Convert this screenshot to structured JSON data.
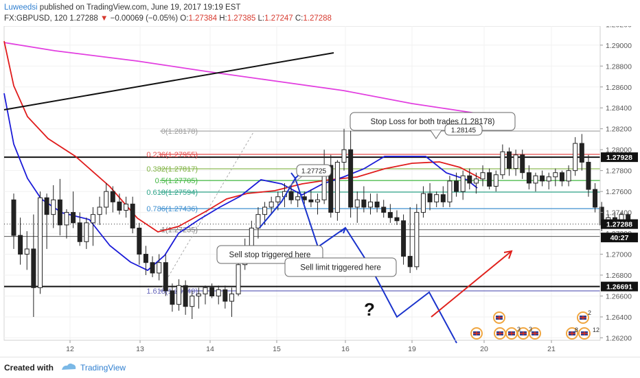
{
  "header": {
    "author": "Luweedsi",
    "published": "published on TradingView.com, June 19, 2017 19:19 EST",
    "symbol": "FX:GBPUSD, 120",
    "last": "1.27288",
    "change_arrow": "▼",
    "change": "−0.00069 (−0.05%)",
    "o_label": "O:",
    "o_value": "1.27384",
    "h_label": "H:",
    "h_value": "1.27385",
    "l_label": "L:",
    "l_value": "1.27247",
    "c_label": "C:",
    "c_value": "1.27288"
  },
  "footer": {
    "created_with": "Created with",
    "brand": "TradingView"
  },
  "colors": {
    "up": "#ffffff",
    "down": "#222222",
    "ema_fast": "#1a1ad8",
    "ema_mid": "#e01b1b",
    "ema_slow": "#e23ee0",
    "projection": "#1a33cc",
    "arrow_red": "#e0201b",
    "price_badge": "#111111",
    "link_blue": "#2f7fd0"
  },
  "chart_data": {
    "type": "candlestick",
    "y_axis_ticks": [
      "1.29200",
      "1.29000",
      "1.28800",
      "1.28600",
      "1.28400",
      "1.28200",
      "1.28000",
      "1.27800",
      "1.27600",
      "1.27400",
      "1.27200",
      "1.27000",
      "1.26800",
      "1.26600",
      "1.26400",
      "1.26200"
    ],
    "ylim": [
      1.2617,
      1.2934
    ],
    "x_axis_ticks": [
      "12",
      "13",
      "14",
      "15",
      "16",
      "19",
      "20",
      "21"
    ],
    "price_badges": [
      {
        "label": "1.27928",
        "value": 1.27928
      },
      {
        "label": "1.27288",
        "value": 1.27288
      },
      {
        "label": "40:27",
        "value": 1.2716
      },
      {
        "label": "1.26691",
        "value": 1.26691
      }
    ],
    "fibonacci": [
      {
        "label": "0(1.28178)",
        "value": 1.28178,
        "color": "#9e9e9e"
      },
      {
        "label": "0.236(1.27955)",
        "value": 1.27955,
        "color": "#e84d4d"
      },
      {
        "label": "0.382(1.27817)",
        "value": 1.27817,
        "color": "#7fb241"
      },
      {
        "label": "0.5(1.27705)",
        "value": 1.27705,
        "color": "#3fb53f"
      },
      {
        "label": "0.618(1.27594)",
        "value": 1.27594,
        "color": "#2fa58a"
      },
      {
        "label": "0.786(1.27436)",
        "value": 1.27436,
        "color": "#3e8fcf"
      },
      {
        "label": "1(1.27235)",
        "value": 1.27235,
        "color": "#7d7d7d"
      },
      {
        "label": "1.618(1.26649)",
        "value": 1.26649,
        "color": "#6666bb"
      }
    ],
    "annotations": [
      {
        "text": "Stop Loss for both trades (1.28178)"
      },
      {
        "text": "1.28145"
      },
      {
        "text": "1.27725"
      },
      {
        "text": "Sell stop triggered here"
      },
      {
        "text": "Sell limit triggered here"
      },
      {
        "text": "?"
      }
    ],
    "events": [
      "2",
      "3",
      "3",
      "8",
      "12"
    ],
    "candles": [
      {
        "o": 1.2752,
        "h": 1.2758,
        "l": 1.2705,
        "c": 1.2718
      },
      {
        "o": 1.2718,
        "h": 1.2735,
        "l": 1.269,
        "c": 1.27
      },
      {
        "o": 1.27,
        "h": 1.2722,
        "l": 1.2685,
        "c": 1.2705
      },
      {
        "o": 1.2705,
        "h": 1.2738,
        "l": 1.264,
        "c": 1.2668
      },
      {
        "o": 1.2668,
        "h": 1.276,
        "l": 1.2662,
        "c": 1.2754
      },
      {
        "o": 1.2754,
        "h": 1.2758,
        "l": 1.2705,
        "c": 1.2738
      },
      {
        "o": 1.2738,
        "h": 1.2766,
        "l": 1.2725,
        "c": 1.2752
      },
      {
        "o": 1.2752,
        "h": 1.2772,
        "l": 1.2718,
        "c": 1.2728
      },
      {
        "o": 1.2728,
        "h": 1.2743,
        "l": 1.2715,
        "c": 1.274
      },
      {
        "o": 1.274,
        "h": 1.276,
        "l": 1.2725,
        "c": 1.273
      },
      {
        "o": 1.273,
        "h": 1.274,
        "l": 1.2708,
        "c": 1.2712
      },
      {
        "o": 1.2712,
        "h": 1.2735,
        "l": 1.2705,
        "c": 1.273
      },
      {
        "o": 1.273,
        "h": 1.2745,
        "l": 1.2708,
        "c": 1.2738
      },
      {
        "o": 1.2738,
        "h": 1.2755,
        "l": 1.2728,
        "c": 1.2745
      },
      {
        "o": 1.2745,
        "h": 1.2768,
        "l": 1.2738,
        "c": 1.276
      },
      {
        "o": 1.276,
        "h": 1.2765,
        "l": 1.274,
        "c": 1.275
      },
      {
        "o": 1.275,
        "h": 1.2758,
        "l": 1.2738,
        "c": 1.2742
      },
      {
        "o": 1.2742,
        "h": 1.2755,
        "l": 1.2735,
        "c": 1.2748
      },
      {
        "o": 1.2748,
        "h": 1.2755,
        "l": 1.272,
        "c": 1.2725
      },
      {
        "o": 1.2725,
        "h": 1.273,
        "l": 1.269,
        "c": 1.27
      },
      {
        "o": 1.27,
        "h": 1.2708,
        "l": 1.268,
        "c": 1.2692
      },
      {
        "o": 1.2692,
        "h": 1.2698,
        "l": 1.2678,
        "c": 1.2682
      },
      {
        "o": 1.2682,
        "h": 1.27,
        "l": 1.2675,
        "c": 1.2692
      },
      {
        "o": 1.2692,
        "h": 1.27,
        "l": 1.266,
        "c": 1.2665
      },
      {
        "o": 1.2665,
        "h": 1.2672,
        "l": 1.2645,
        "c": 1.2652
      },
      {
        "o": 1.2652,
        "h": 1.2676,
        "l": 1.2646,
        "c": 1.267
      },
      {
        "o": 1.267,
        "h": 1.2675,
        "l": 1.2642,
        "c": 1.265
      },
      {
        "o": 1.265,
        "h": 1.2665,
        "l": 1.2638,
        "c": 1.266
      },
      {
        "o": 1.266,
        "h": 1.2668,
        "l": 1.2648,
        "c": 1.2662
      },
      {
        "o": 1.2662,
        "h": 1.267,
        "l": 1.2652,
        "c": 1.2668
      },
      {
        "o": 1.2668,
        "h": 1.2672,
        "l": 1.2658,
        "c": 1.266
      },
      {
        "o": 1.266,
        "h": 1.267,
        "l": 1.2652,
        "c": 1.2666
      },
      {
        "o": 1.2666,
        "h": 1.267,
        "l": 1.2648,
        "c": 1.2655
      },
      {
        "o": 1.2655,
        "h": 1.2668,
        "l": 1.264,
        "c": 1.2662
      },
      {
        "o": 1.2662,
        "h": 1.2695,
        "l": 1.266,
        "c": 1.269
      },
      {
        "o": 1.269,
        "h": 1.2715,
        "l": 1.2685,
        "c": 1.2708
      },
      {
        "o": 1.2708,
        "h": 1.2732,
        "l": 1.27,
        "c": 1.2725
      },
      {
        "o": 1.2725,
        "h": 1.2745,
        "l": 1.2715,
        "c": 1.2738
      },
      {
        "o": 1.2738,
        "h": 1.275,
        "l": 1.2728,
        "c": 1.2745
      },
      {
        "o": 1.2745,
        "h": 1.2755,
        "l": 1.2738,
        "c": 1.275
      },
      {
        "o": 1.275,
        "h": 1.276,
        "l": 1.2742,
        "c": 1.2755
      },
      {
        "o": 1.2755,
        "h": 1.2768,
        "l": 1.2745,
        "c": 1.276
      },
      {
        "o": 1.276,
        "h": 1.2765,
        "l": 1.2748,
        "c": 1.2752
      },
      {
        "o": 1.2752,
        "h": 1.276,
        "l": 1.2745,
        "c": 1.2755
      },
      {
        "o": 1.2755,
        "h": 1.276,
        "l": 1.2748,
        "c": 1.2752
      },
      {
        "o": 1.2752,
        "h": 1.2762,
        "l": 1.2745,
        "c": 1.275
      },
      {
        "o": 1.275,
        "h": 1.2758,
        "l": 1.2738,
        "c": 1.2752
      },
      {
        "o": 1.2752,
        "h": 1.28,
        "l": 1.2748,
        "c": 1.2785
      },
      {
        "o": 1.2785,
        "h": 1.2795,
        "l": 1.2735,
        "c": 1.274
      },
      {
        "o": 1.274,
        "h": 1.279,
        "l": 1.2732,
        "c": 1.2788
      },
      {
        "o": 1.2788,
        "h": 1.282,
        "l": 1.278,
        "c": 1.28
      },
      {
        "o": 1.28,
        "h": 1.2818,
        "l": 1.2735,
        "c": 1.2745
      },
      {
        "o": 1.2745,
        "h": 1.276,
        "l": 1.273,
        "c": 1.2752
      },
      {
        "o": 1.2752,
        "h": 1.2765,
        "l": 1.274,
        "c": 1.2745
      },
      {
        "o": 1.2745,
        "h": 1.2758,
        "l": 1.2738,
        "c": 1.275
      },
      {
        "o": 1.275,
        "h": 1.2758,
        "l": 1.274,
        "c": 1.2745
      },
      {
        "o": 1.2745,
        "h": 1.2752,
        "l": 1.2735,
        "c": 1.274
      },
      {
        "o": 1.274,
        "h": 1.2748,
        "l": 1.273,
        "c": 1.2735
      },
      {
        "o": 1.2735,
        "h": 1.2742,
        "l": 1.2728,
        "c": 1.2732
      },
      {
        "o": 1.2732,
        "h": 1.2738,
        "l": 1.269,
        "c": 1.2698
      },
      {
        "o": 1.2698,
        "h": 1.2745,
        "l": 1.2682,
        "c": 1.2688
      },
      {
        "o": 1.2688,
        "h": 1.2748,
        "l": 1.2685,
        "c": 1.274
      },
      {
        "o": 1.274,
        "h": 1.2765,
        "l": 1.2735,
        "c": 1.2758
      },
      {
        "o": 1.2758,
        "h": 1.2768,
        "l": 1.2742,
        "c": 1.275
      },
      {
        "o": 1.275,
        "h": 1.276,
        "l": 1.2745,
        "c": 1.2757
      },
      {
        "o": 1.2757,
        "h": 1.2765,
        "l": 1.2745,
        "c": 1.275
      },
      {
        "o": 1.275,
        "h": 1.2775,
        "l": 1.2745,
        "c": 1.277
      },
      {
        "o": 1.277,
        "h": 1.2778,
        "l": 1.2755,
        "c": 1.276
      },
      {
        "o": 1.276,
        "h": 1.278,
        "l": 1.2752,
        "c": 1.2775
      },
      {
        "o": 1.2775,
        "h": 1.2782,
        "l": 1.2762,
        "c": 1.2768
      },
      {
        "o": 1.2768,
        "h": 1.2778,
        "l": 1.2758,
        "c": 1.2772
      },
      {
        "o": 1.2772,
        "h": 1.2785,
        "l": 1.2765,
        "c": 1.2778
      },
      {
        "o": 1.2778,
        "h": 1.2782,
        "l": 1.2762,
        "c": 1.2765
      },
      {
        "o": 1.2765,
        "h": 1.278,
        "l": 1.276,
        "c": 1.2776
      },
      {
        "o": 1.2776,
        "h": 1.2805,
        "l": 1.2772,
        "c": 1.2798
      },
      {
        "o": 1.2798,
        "h": 1.2802,
        "l": 1.2775,
        "c": 1.2782
      },
      {
        "o": 1.2782,
        "h": 1.28,
        "l": 1.2775,
        "c": 1.2795
      },
      {
        "o": 1.2795,
        "h": 1.28,
        "l": 1.2772,
        "c": 1.2778
      },
      {
        "o": 1.2778,
        "h": 1.2785,
        "l": 1.2762,
        "c": 1.2768
      },
      {
        "o": 1.2768,
        "h": 1.2778,
        "l": 1.276,
        "c": 1.2775
      },
      {
        "o": 1.2775,
        "h": 1.278,
        "l": 1.2765,
        "c": 1.277
      },
      {
        "o": 1.277,
        "h": 1.2778,
        "l": 1.2762,
        "c": 1.2774
      },
      {
        "o": 1.2774,
        "h": 1.2782,
        "l": 1.2765,
        "c": 1.2778
      },
      {
        "o": 1.2778,
        "h": 1.278,
        "l": 1.2765,
        "c": 1.277
      },
      {
        "o": 1.277,
        "h": 1.2785,
        "l": 1.2765,
        "c": 1.278
      },
      {
        "o": 1.278,
        "h": 1.2812,
        "l": 1.2775,
        "c": 1.2806
      },
      {
        "o": 1.2806,
        "h": 1.2815,
        "l": 1.278,
        "c": 1.2788
      },
      {
        "o": 1.2788,
        "h": 1.2795,
        "l": 1.2755,
        "c": 1.2762
      },
      {
        "o": 1.2762,
        "h": 1.2768,
        "l": 1.274,
        "c": 1.2745
      },
      {
        "o": 1.2745,
        "h": 1.275,
        "l": 1.2722,
        "c": 1.2728
      },
      {
        "o": 1.2728,
        "h": 1.2738,
        "l": 1.2725,
        "c": 1.2735
      },
      {
        "o": 1.2735,
        "h": 1.274,
        "l": 1.2728,
        "c": 1.273
      },
      {
        "o": 1.273,
        "h": 1.274,
        "l": 1.2726,
        "c": 1.2738
      },
      {
        "o": 1.2738,
        "h": 1.2739,
        "l": 1.2725,
        "c": 1.2729
      }
    ]
  }
}
